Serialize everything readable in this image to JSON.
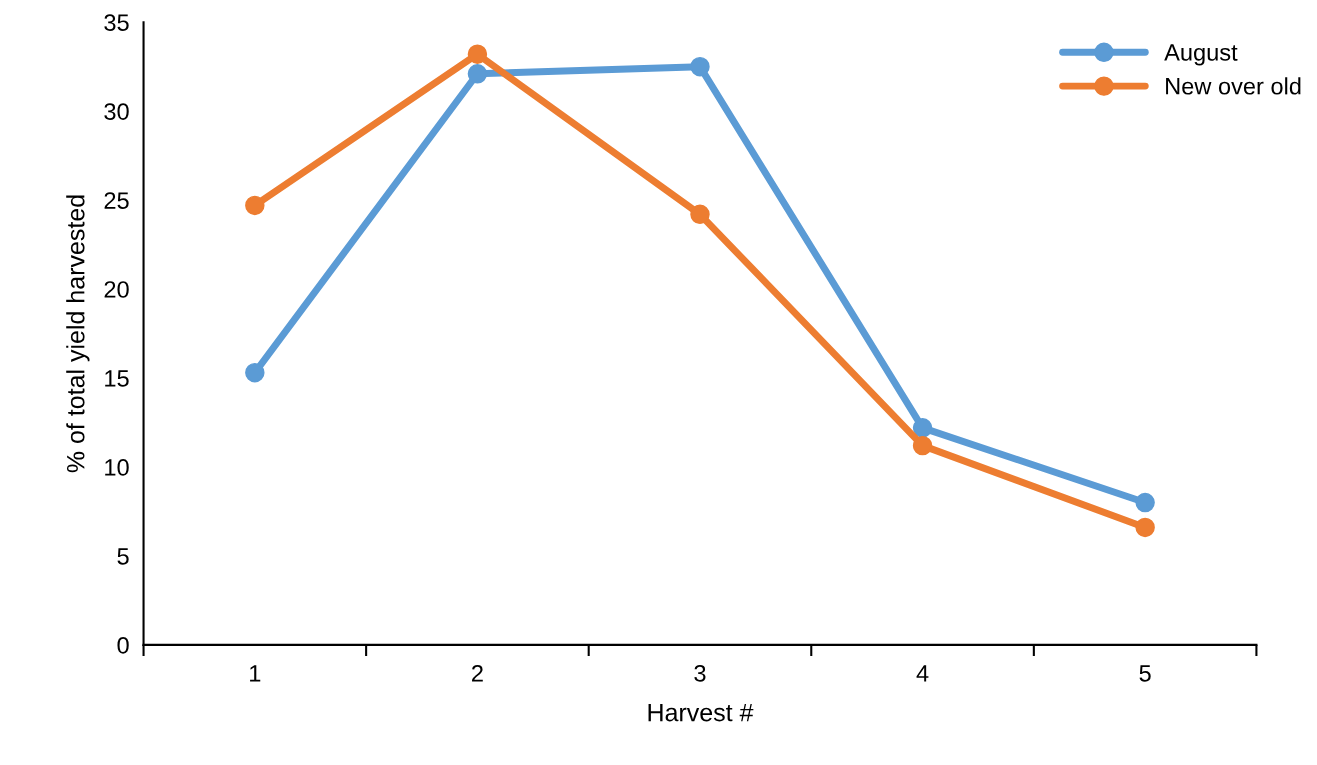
{
  "chart_data": {
    "type": "line",
    "xlabel": "Harvest #",
    "ylabel": "% of total yield harvested",
    "categories": [
      "1",
      "2",
      "3",
      "4",
      "5"
    ],
    "series": [
      {
        "name": "August",
        "color": "#5b9bd5",
        "values": [
          15.3,
          32.1,
          32.5,
          12.2,
          8.0
        ]
      },
      {
        "name": "New over old",
        "color": "#ed7d31",
        "values": [
          24.7,
          33.2,
          24.2,
          11.2,
          6.6
        ]
      }
    ],
    "ylim": [
      0,
      35
    ],
    "yticks": [
      0,
      5,
      10,
      15,
      20,
      25,
      30,
      35
    ],
    "grid": false,
    "legend": "top right",
    "marker": "circle",
    "line_style": "solid"
  }
}
